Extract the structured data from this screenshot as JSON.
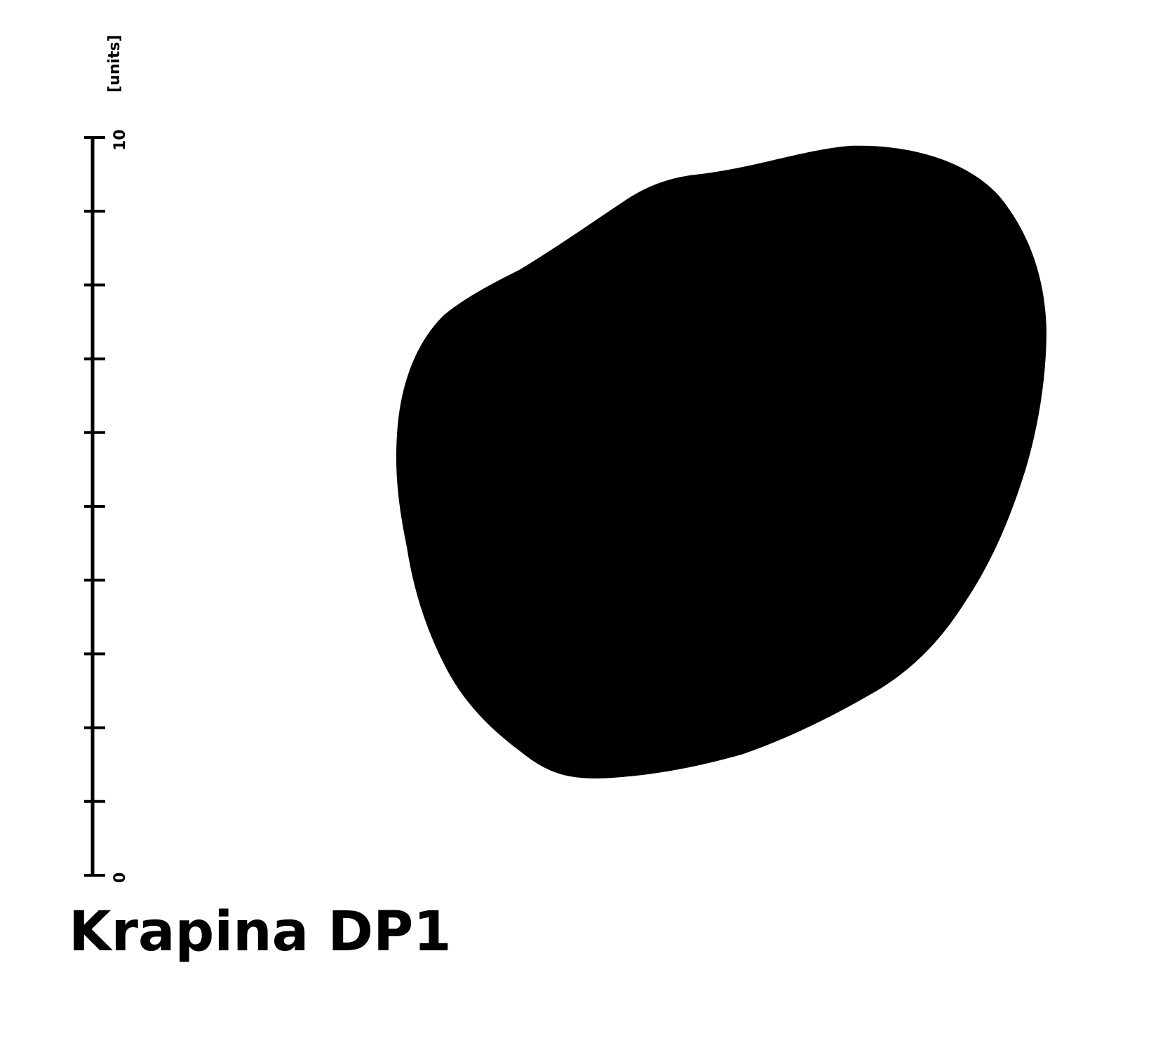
{
  "scale_bar": {
    "unit_label": "[units]",
    "min_label": "0",
    "max_label": "10",
    "min_value": 0,
    "max_value": 10,
    "tick_step": 1
  },
  "caption": "Krapina DP1",
  "colors": {
    "ink": "#000000",
    "background": "#ffffff"
  }
}
